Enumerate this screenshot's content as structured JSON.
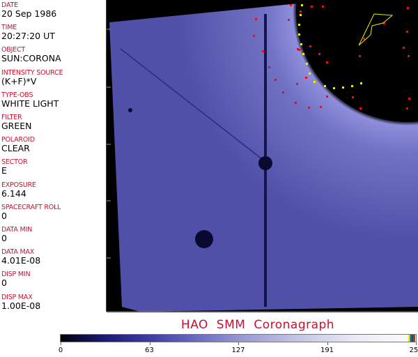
{
  "fields": [
    {
      "label": "DATE",
      "value": "20 Sep 1986"
    },
    {
      "label": "TIME",
      "value": "20:27:20 UT"
    },
    {
      "label": "OBJECT",
      "value": "SUN:CORONA"
    },
    {
      "label": "INTENSITY SOURCE",
      "value": "(K+F)*V"
    },
    {
      "label": "TYPE-OBS",
      "value": "WHITE LIGHT"
    },
    {
      "label": "FILTER",
      "value": "GREEN"
    },
    {
      "label": "POLAROID",
      "value": "CLEAR"
    },
    {
      "label": "SECTOR",
      "value": "E"
    },
    {
      "label": "EXPOSURE",
      "value": "6.144"
    },
    {
      "label": "SPACECRAFT ROLL",
      "value": "0"
    },
    {
      "label": "DATA MIN",
      "value": "0"
    },
    {
      "label": "DATA MAX",
      "value": "4.01E-08"
    },
    {
      "label": "DISP MIN",
      "value": "0"
    },
    {
      "label": "DISP MAX",
      "value": "1.00E-08"
    }
  ],
  "title": "HAO  SMM  Coronagraph",
  "colorbar": {
    "ticks": [
      "0",
      "63",
      "127",
      "191",
      "255"
    ],
    "min": 0,
    "max": 255
  },
  "colors": {
    "label": "#c8102e",
    "image_blue": "#5a5ab8"
  }
}
